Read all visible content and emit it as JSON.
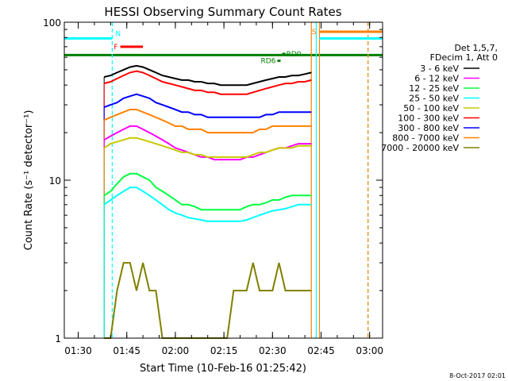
{
  "chart_data": {
    "type": "line",
    "title": "HESSI Observing Summary Count Rates",
    "xlabel": "Start Time (10-Feb-16 01:25:42)",
    "ylabel": "Count Rate (s⁻¹ detector⁻¹)",
    "y_scale": "log",
    "ylim": [
      1,
      100
    ],
    "xlim": [
      "01:25:42",
      "03:04:00"
    ],
    "x_ticks": [
      "01:30",
      "01:45",
      "02:00",
      "02:15",
      "02:30",
      "02:45",
      "03:00"
    ],
    "y_ticks": [
      "1",
      "10",
      "100"
    ],
    "timestamp": "8-Oct-2017 02:01",
    "legend": {
      "placement": "right",
      "header": [
        "Det 1,5,7,",
        "FDecim 1, Att 0"
      ],
      "entries": [
        {
          "label": "3 - 6 keV",
          "color": "#000000"
        },
        {
          "label": "6 - 12 keV",
          "color": "#ff00ff"
        },
        {
          "label": "12 - 25 keV",
          "color": "#00ff40"
        },
        {
          "label": "25 - 50 keV",
          "color": "#00ffff"
        },
        {
          "label": "50 - 100 keV",
          "color": "#c8c800"
        },
        {
          "label": "100 - 300 keV",
          "color": "#ff0000"
        },
        {
          "label": "300 - 800 keV",
          "color": "#0000ff"
        },
        {
          "label": "800 - 7000 keV",
          "color": "#ff8000"
        },
        {
          "label": "7000 - 20000 keV",
          "color": "#808000"
        }
      ]
    },
    "x": [
      "01:38",
      "01:40",
      "01:42",
      "01:44",
      "01:46",
      "01:48",
      "01:50",
      "01:52",
      "01:54",
      "01:56",
      "01:58",
      "02:00",
      "02:02",
      "02:04",
      "02:06",
      "02:08",
      "02:10",
      "02:12",
      "02:14",
      "02:16",
      "02:18",
      "02:20",
      "02:22",
      "02:24",
      "02:26",
      "02:28",
      "02:30",
      "02:32",
      "02:34",
      "02:36",
      "02:38",
      "02:40",
      "02:42"
    ],
    "series": [
      {
        "name": "3 - 6 keV",
        "color": "#000000",
        "values": [
          45,
          46,
          48,
          50,
          52,
          53,
          52,
          50,
          48,
          46,
          45,
          44,
          43,
          43,
          42,
          42,
          41,
          41,
          40,
          40,
          40,
          40,
          40,
          41,
          42,
          43,
          44,
          45,
          45,
          46,
          46,
          47,
          48
        ]
      },
      {
        "name": "100 - 300 keV",
        "color": "#ff0000",
        "values": [
          41,
          42,
          44,
          46,
          48,
          49,
          48,
          46,
          44,
          42,
          41,
          40,
          39,
          38,
          37,
          37,
          36,
          36,
          35,
          35,
          35,
          35,
          35,
          36,
          37,
          38,
          39,
          40,
          41,
          41,
          42,
          42,
          43
        ]
      },
      {
        "name": "300 - 800 keV",
        "color": "#0000ff",
        "values": [
          29,
          30,
          31,
          33,
          34,
          35,
          34,
          33,
          31,
          30,
          29,
          28,
          27,
          27,
          26,
          26,
          25,
          25,
          25,
          25,
          25,
          25,
          25,
          25,
          25,
          26,
          26,
          27,
          27,
          27,
          27,
          27,
          27
        ]
      },
      {
        "name": "800 - 7000 keV",
        "color": "#ff8000",
        "values": [
          24,
          25,
          26,
          27,
          28,
          28,
          27,
          26,
          25,
          24,
          23,
          22,
          22,
          21,
          21,
          21,
          20,
          20,
          20,
          20,
          20,
          20,
          20,
          20,
          21,
          21,
          22,
          22,
          22,
          22,
          22,
          22,
          22
        ]
      },
      {
        "name": "6 - 12 keV",
        "color": "#ff00ff",
        "values": [
          18,
          19,
          20,
          21,
          22,
          22,
          21,
          20,
          19,
          18,
          17,
          16,
          15.5,
          15,
          14.5,
          14,
          14,
          13.5,
          13.5,
          13.5,
          13.5,
          13.5,
          14,
          14,
          14.5,
          15,
          15.5,
          16,
          16,
          16.5,
          17,
          17,
          17
        ]
      },
      {
        "name": "50 - 100 keV",
        "color": "#c8c800",
        "values": [
          16,
          17,
          17.5,
          18,
          18.5,
          18.5,
          18,
          17.5,
          17,
          16.5,
          16,
          15.5,
          15,
          15,
          14.5,
          14.5,
          14,
          14,
          14,
          14,
          14,
          14,
          14,
          14.5,
          15,
          15,
          15.5,
          16,
          16,
          16,
          16.5,
          16.5,
          16.5
        ]
      },
      {
        "name": "12 - 25 keV",
        "color": "#00ff40",
        "values": [
          8,
          8.5,
          9.5,
          10.5,
          11,
          11,
          10.5,
          10,
          9,
          8.5,
          8,
          7.5,
          7,
          7,
          6.8,
          6.5,
          6.5,
          6.5,
          6.5,
          6.5,
          6.5,
          6.5,
          6.8,
          7,
          7,
          7.2,
          7.5,
          7.5,
          7.8,
          8,
          8,
          8,
          8
        ]
      },
      {
        "name": "25 - 50 keV",
        "color": "#00ffff",
        "values": [
          7,
          7.5,
          8,
          8.5,
          9,
          9,
          8.5,
          8,
          7.5,
          7,
          6.5,
          6.2,
          6,
          5.8,
          5.7,
          5.6,
          5.5,
          5.5,
          5.5,
          5.5,
          5.5,
          5.5,
          5.6,
          5.8,
          6,
          6.2,
          6.4,
          6.5,
          6.6,
          6.8,
          7,
          7,
          7
        ]
      },
      {
        "name": "7000 - 20000 keV",
        "color": "#808000",
        "values": [
          1,
          1,
          2,
          3,
          3,
          2,
          3,
          2,
          2,
          1,
          1,
          1,
          1,
          1,
          1,
          1,
          1,
          1,
          1,
          1,
          2,
          2,
          2,
          3,
          2,
          2,
          2,
          3,
          2,
          2,
          2,
          2,
          2
        ]
      }
    ],
    "flags": [
      {
        "label": "N",
        "color": "#00ffff",
        "start": "01:25:42",
        "end": "01:40:30",
        "level": 79
      },
      {
        "label": "F",
        "color": "#ff0000",
        "start": "01:43:00",
        "end": "01:50:00",
        "level": 70
      },
      {
        "label": "S",
        "color": "#ff8000",
        "start": "02:44:30",
        "end": "03:04:00",
        "level": 87
      },
      {
        "label": "",
        "color": "#00ffff",
        "start": "02:44:30",
        "end": "03:04:00",
        "level": 79
      },
      {
        "label": "RD0",
        "color": "#008000",
        "start": "02:33:00",
        "end": "02:34:00",
        "level": 63
      },
      {
        "label": "RD6",
        "color": "#008000",
        "start": "02:31:30",
        "end": "02:32:30",
        "level": 57
      }
    ],
    "saa_line": {
      "color": "#008000",
      "level": 62
    },
    "vertical_lines": [
      {
        "time": "01:40:30",
        "color": "#00ffff",
        "style": "dashed"
      },
      {
        "time": "02:42:00",
        "color": "#ff8000",
        "style": "solid"
      },
      {
        "time": "02:43:30",
        "color": "#00ffff",
        "style": "solid"
      },
      {
        "time": "02:44:30",
        "color": "#ff8000",
        "style": "solid"
      },
      {
        "time": "02:59:30",
        "color": "#00ffff",
        "style": "dashed"
      },
      {
        "time": "02:59:30",
        "color": "#ff8000",
        "style": "dashed"
      }
    ],
    "grid": false
  }
}
